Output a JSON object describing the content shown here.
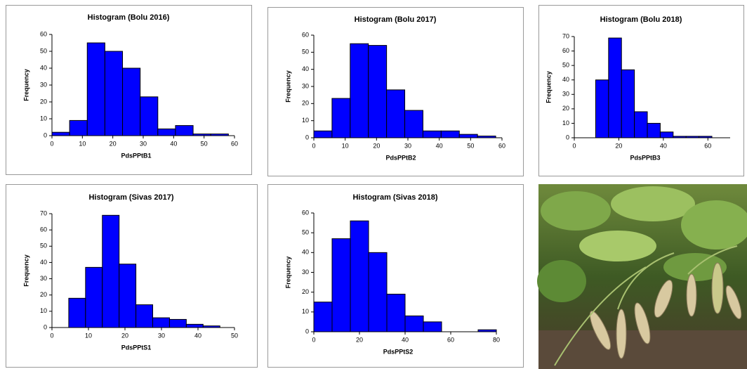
{
  "chart_data": [
    {
      "type": "histogram",
      "title": "Histogram (Bolu 2016)",
      "xlabel": "PdsPPtB1",
      "ylabel": "Frequency",
      "color": "#0000ff",
      "bins": [
        0,
        5.8,
        11.6,
        17.4,
        23.2,
        29,
        34.8,
        40.6,
        46.4,
        52.2,
        58
      ],
      "values": [
        2,
        9,
        55,
        50,
        40,
        23,
        4,
        6,
        1,
        1
      ],
      "xlim": [
        0,
        60
      ],
      "xticks": [
        0,
        10,
        20,
        30,
        40,
        50,
        60
      ],
      "ylim": [
        0,
        60
      ],
      "yticks": [
        0,
        10,
        20,
        30,
        40,
        50,
        60
      ]
    },
    {
      "type": "histogram",
      "title": "Histogram (Bolu 2017)",
      "xlabel": "PdsPPtB2",
      "ylabel": "Frequency",
      "color": "#0000ff",
      "bins": [
        0,
        5.8,
        11.6,
        17.4,
        23.2,
        29,
        34.8,
        40.6,
        46.4,
        52.2,
        58
      ],
      "values": [
        4,
        23,
        55,
        54,
        28,
        16,
        4,
        4,
        2,
        1
      ],
      "xlim": [
        0,
        60
      ],
      "xticks": [
        0,
        10,
        20,
        30,
        40,
        50,
        60
      ],
      "ylim": [
        0,
        60
      ],
      "yticks": [
        0,
        10,
        20,
        30,
        40,
        50,
        60
      ]
    },
    {
      "type": "histogram",
      "title": "Histogram (Bolu 2018)",
      "xlabel": "PdsPPtB3",
      "ylabel": "Frequency",
      "color": "#0000ff",
      "bins": [
        9.6,
        15.4,
        21.2,
        27,
        32.8,
        38.6,
        44.4,
        50.2,
        56,
        61.8
      ],
      "values": [
        40,
        69,
        47,
        18,
        10,
        4,
        1,
        1,
        1
      ],
      "xlim": [
        0,
        70
      ],
      "xticks": [
        0,
        20,
        40,
        60
      ],
      "ylim": [
        0,
        70
      ],
      "yticks": [
        0,
        10,
        20,
        30,
        40,
        50,
        60,
        70
      ]
    },
    {
      "type": "histogram",
      "title": "Histogram (Sivas 2017)",
      "xlabel": "PdsPPtS1",
      "ylabel": "Frequency",
      "color": "#0000ff",
      "bins": [
        4.6,
        9.2,
        13.8,
        18.4,
        23,
        27.6,
        32.2,
        36.8,
        41.4,
        46
      ],
      "values": [
        18,
        37,
        69,
        39,
        14,
        6,
        5,
        2,
        1
      ],
      "xlim": [
        0,
        50
      ],
      "xticks": [
        0,
        10,
        20,
        30,
        40,
        50
      ],
      "ylim": [
        0,
        70
      ],
      "yticks": [
        0,
        10,
        20,
        30,
        40,
        50,
        60,
        70
      ]
    },
    {
      "type": "histogram",
      "title": "Histogram (Sivas 2018)",
      "xlabel": "PdsPPtS2",
      "ylabel": "Frequency",
      "color": "#0000ff",
      "bins": [
        0,
        8,
        16,
        24,
        32,
        40,
        48,
        56,
        64,
        72,
        80
      ],
      "values": [
        15,
        47,
        56,
        40,
        19,
        8,
        5,
        0,
        0,
        1
      ],
      "xlim": [
        0,
        80
      ],
      "xticks": [
        0,
        20,
        40,
        60,
        80
      ],
      "ylim": [
        0,
        60
      ],
      "yticks": [
        0,
        10,
        20,
        30,
        40,
        50,
        60
      ]
    }
  ]
}
